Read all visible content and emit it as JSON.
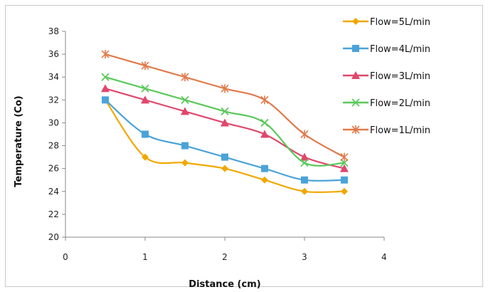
{
  "chart_data": {
    "type": "line",
    "xlabel": "Distance  (cm)",
    "ylabel": "Temperature (Co)",
    "xlim": [
      0,
      4
    ],
    "ylim": [
      20,
      38
    ],
    "x_ticks": [
      0,
      1,
      2,
      3,
      4
    ],
    "y_ticks": [
      20,
      22,
      24,
      26,
      28,
      30,
      32,
      34,
      36,
      38
    ],
    "grid": false,
    "legend_position": "top-right",
    "x": [
      0.5,
      1,
      1.5,
      2,
      2.5,
      3,
      3.5
    ],
    "series": [
      {
        "name": "Flow=5L/min",
        "marker": "diamond",
        "color": "#f0a800",
        "values": [
          32,
          27,
          26.5,
          26,
          25,
          24,
          24
        ]
      },
      {
        "name": "Flow=4L/min",
        "marker": "square",
        "color": "#4aa3d8",
        "values": [
          32,
          29,
          28,
          27,
          26,
          25,
          25
        ]
      },
      {
        "name": "Flow=3L/min",
        "marker": "triangle",
        "color": "#e0476b",
        "values": [
          33,
          32,
          31,
          30,
          29,
          27,
          26
        ]
      },
      {
        "name": "Flow=2L/min",
        "marker": "x",
        "color": "#5ac85a",
        "values": [
          34,
          33,
          32,
          31,
          30,
          26.5,
          26.5
        ]
      },
      {
        "name": "Flow=1L/min",
        "marker": "asterisk",
        "color": "#e07a4a",
        "values": [
          36,
          35,
          34,
          33,
          32,
          29,
          27
        ]
      }
    ]
  }
}
